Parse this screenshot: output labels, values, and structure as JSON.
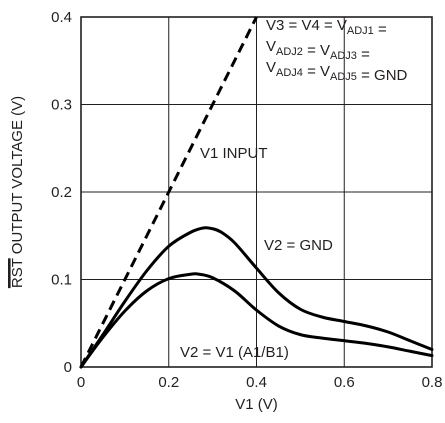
{
  "chart_data": {
    "type": "line",
    "ylabel_overline": "RST",
    "ylabel_rest": " OUTPUT VOLTAGE (V)",
    "xlabel": "V1 (V)",
    "xlim": [
      0,
      0.8
    ],
    "ylim": [
      0,
      0.4
    ],
    "x_ticks": [
      0,
      0.2,
      0.4,
      0.6,
      0.8
    ],
    "y_ticks": [
      0,
      0.1,
      0.2,
      0.3,
      0.4
    ],
    "x_tick_labels": [
      "0",
      "0.2",
      "0.4",
      "0.6",
      "0.8"
    ],
    "y_tick_labels": [
      "0",
      "0.1",
      "0.2",
      "0.3",
      "0.4"
    ],
    "grid": true,
    "series": [
      {
        "name": "V1 INPUT",
        "style": "dashed",
        "x": [
          0,
          0.1,
          0.2,
          0.3,
          0.4
        ],
        "y": [
          0,
          0.1,
          0.2,
          0.3,
          0.4
        ]
      },
      {
        "name": "V2 = GND",
        "style": "solid",
        "x": [
          0,
          0.05,
          0.1,
          0.15,
          0.2,
          0.25,
          0.28,
          0.3,
          0.32,
          0.35,
          0.4,
          0.45,
          0.5,
          0.55,
          0.6,
          0.65,
          0.7,
          0.75,
          0.8
        ],
        "y": [
          0,
          0.037,
          0.075,
          0.11,
          0.138,
          0.154,
          0.159,
          0.158,
          0.154,
          0.142,
          0.113,
          0.085,
          0.066,
          0.057,
          0.052,
          0.047,
          0.04,
          0.03,
          0.02
        ]
      },
      {
        "name": "V2 = V1 (A1/B1)",
        "style": "solid",
        "x": [
          0,
          0.05,
          0.1,
          0.15,
          0.2,
          0.25,
          0.27,
          0.3,
          0.35,
          0.4,
          0.45,
          0.5,
          0.55,
          0.6,
          0.65,
          0.7,
          0.75,
          0.8
        ],
        "y": [
          0,
          0.034,
          0.064,
          0.087,
          0.101,
          0.106,
          0.106,
          0.102,
          0.087,
          0.065,
          0.047,
          0.037,
          0.033,
          0.03,
          0.027,
          0.023,
          0.018,
          0.013
        ]
      }
    ],
    "annotations": {
      "conditions": [
        [
          {
            "t": "V3 = V4 = V"
          },
          {
            "t": "ADJ1",
            "sub": true
          },
          {
            "t": " ="
          }
        ],
        [
          {
            "t": "V"
          },
          {
            "t": "ADJ2",
            "sub": true
          },
          {
            "t": " = V"
          },
          {
            "t": "ADJ3",
            "sub": true
          },
          {
            "t": " ="
          }
        ],
        [
          {
            "t": "V"
          },
          {
            "t": "ADJ4",
            "sub": true
          },
          {
            "t": " = V"
          },
          {
            "t": "ADJ5",
            "sub": true
          },
          {
            "t": " = GND"
          }
        ]
      ],
      "v1_input": "V1 INPUT",
      "v2_gnd": "V2 = GND",
      "v2_v1": "V2 = V1 (A1/B1)"
    }
  }
}
